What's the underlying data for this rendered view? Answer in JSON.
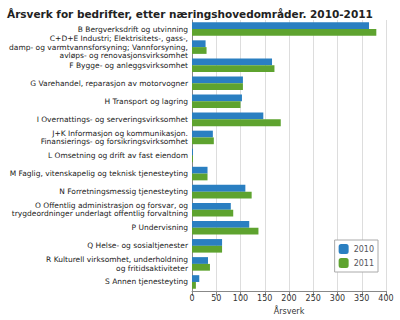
{
  "chart_data": {
    "type": "bar",
    "orientation": "horizontal",
    "title": "Årsverk for bedrifter, etter næringshovedområder. 2010-2011",
    "x_label": "Årsverk",
    "categories": [
      "B Bergverksdrift og utvinning",
      "C+D+E Industri; Elektrisitets-, gass-,\ndamp- og varmtvannsforsyning; Vannforsyning,\navløps- og renovasjonsvirksomhet",
      "F Bygge- og anleggsvirksomhet",
      "G Varehandel, reparasjon av motorvogner",
      "H Transport og lagring",
      "I Overnattings- og serveringsvirksomhet",
      "J+K Informasjon og kommunikasjon.\nFinansierings- og forsikringsvirksomhet",
      "L Omsetning og drift av fast eiendom",
      "M Faglig, vitenskapelig og teknisk tjenesteyting",
      "N Forretningsmessig tjenesteyting",
      "O Offentlig administrasjon og forsvar, og\ntrygdeordninger underlagt offentlig forvaltning",
      "P Undervisning",
      "Q Helse- og sosialtjenester",
      "R Kulturell virksomhet, underholdning\nog fritidsaktiviteter",
      "S Annen tjenesteyting"
    ],
    "series": [
      {
        "name": "2010",
        "color": "#2a7fc1",
        "values": [
          365,
          28,
          165,
          105,
          103,
          147,
          43,
          2,
          32,
          110,
          80,
          118,
          62,
          33,
          15
        ]
      },
      {
        "name": "2011",
        "color": "#5ea32f",
        "values": [
          380,
          30,
          170,
          105,
          100,
          183,
          45,
          2,
          32,
          123,
          85,
          137,
          62,
          37,
          8
        ]
      }
    ],
    "xlim": [
      0,
      400
    ],
    "xticks": [
      0,
      50,
      100,
      150,
      200,
      250,
      300,
      350,
      400
    ],
    "grid": true,
    "legend": "lower right"
  }
}
